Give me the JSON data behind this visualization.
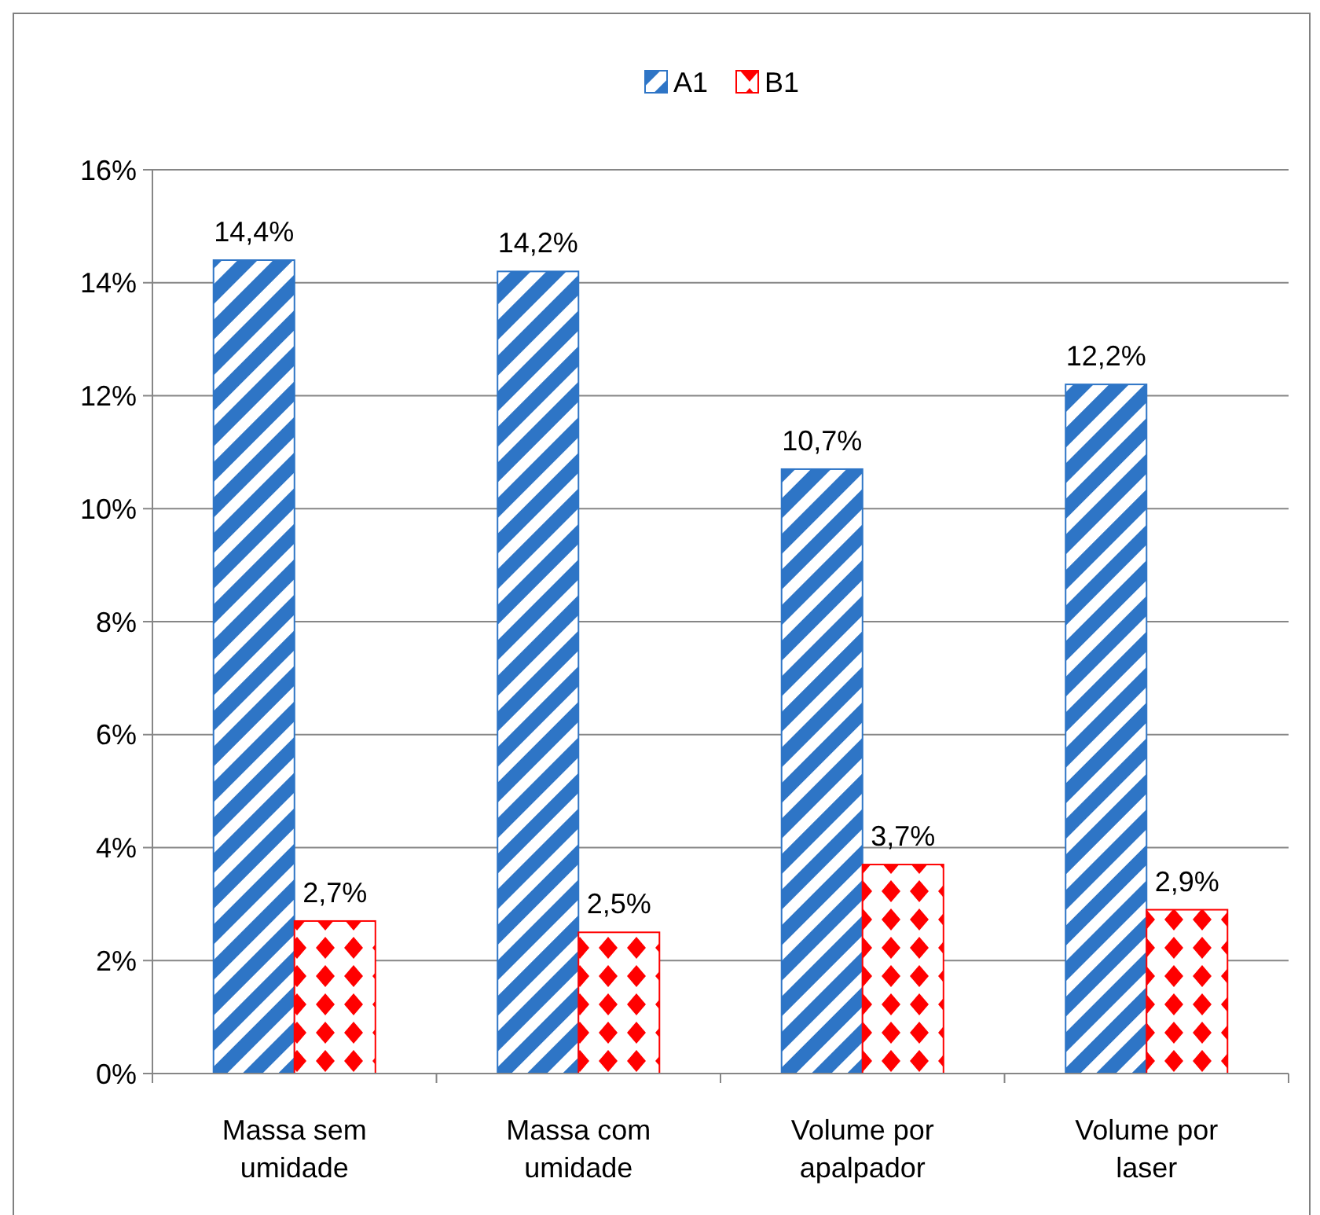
{
  "chart_data": {
    "type": "bar",
    "categories": [
      "Massa sem umidade",
      "Massa com umidade",
      "Volume por apalpador",
      "Volume por laser"
    ],
    "series": [
      {
        "name": "A1",
        "color": "#2e75c6",
        "values": [
          14.4,
          14.2,
          10.7,
          12.2
        ],
        "value_labels": [
          "14,4%",
          "14,2%",
          "10,7%",
          "12,2%"
        ]
      },
      {
        "name": "B1",
        "color": "#ff0000",
        "values": [
          2.7,
          2.5,
          3.7,
          2.9
        ],
        "value_labels": [
          "2,7%",
          "2,5%",
          "3,7%",
          "2,9%"
        ]
      }
    ],
    "ylim": [
      0,
      16
    ],
    "yticks": [
      {
        "value": 0,
        "label": "0%"
      },
      {
        "value": 2,
        "label": "2%"
      },
      {
        "value": 4,
        "label": "4%"
      },
      {
        "value": 6,
        "label": "6%"
      },
      {
        "value": 8,
        "label": "8%"
      },
      {
        "value": 10,
        "label": "10%"
      },
      {
        "value": 12,
        "label": "12%"
      },
      {
        "value": 14,
        "label": "14%"
      },
      {
        "value": 16,
        "label": "16%"
      }
    ],
    "grid": "y",
    "legend": "top"
  }
}
